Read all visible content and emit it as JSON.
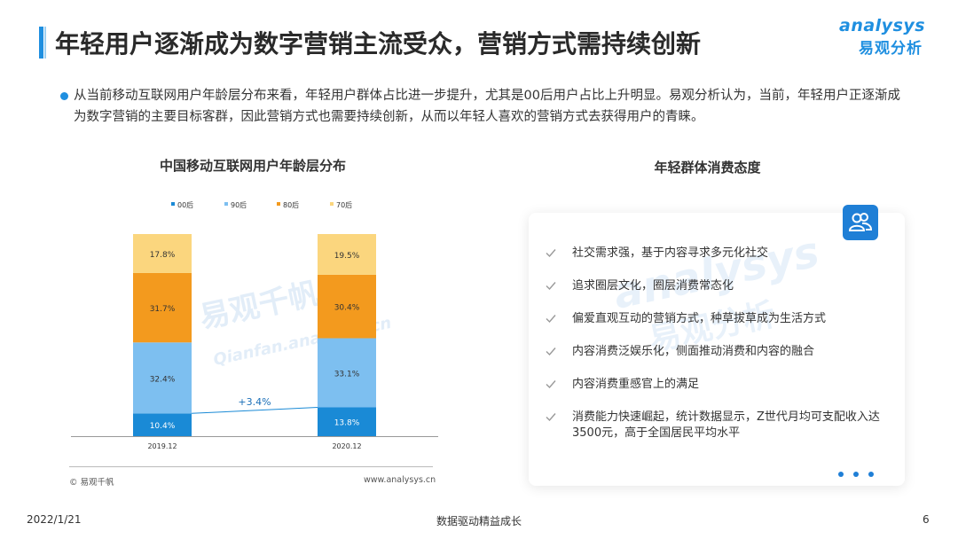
{
  "header": {
    "title": "年轻用户逐渐成为数字营销主流受众，营销方式需持续创新",
    "logo_text_en": "analysys",
    "logo_text_cn": "易观分析"
  },
  "intro": "从当前移动互联网用户年龄层分布来看，年轻用户群体占比进一步提升，尤其是00后用户占比上升明显。易观分析认为，当前，年轻用户正逐渐成为数字营销的主要目标客群，因此营销方式也需要持续创新，从而以年轻人喜欢的营销方式去获得用户的青睐。",
  "chart_data": {
    "type": "bar",
    "stacked": true,
    "percent": true,
    "title": "中国移动互联网用户年龄层分布",
    "categories": [
      "2019.12",
      "2020.12"
    ],
    "series": [
      {
        "name": "00后",
        "values": [
          10.4,
          13.8
        ],
        "color": "#1a8ad6"
      },
      {
        "name": "90后",
        "values": [
          32.4,
          33.1
        ],
        "color": "#7dbff0"
      },
      {
        "name": "80后",
        "values": [
          31.7,
          30.4
        ],
        "color": "#f39a1e"
      },
      {
        "name": "70后",
        "values": [
          17.8,
          19.5
        ],
        "color": "#fbd67e"
      }
    ],
    "value_labels": [
      [
        "10.4%",
        "32.4%",
        "31.7%",
        "17.8%"
      ],
      [
        "13.8%",
        "33.1%",
        "30.4%",
        "19.5%"
      ]
    ],
    "annotation": "+3.4%",
    "legend_position": "top",
    "ylim": [
      0,
      100
    ],
    "watermark_cn": "易观千帆",
    "watermark_en": "Qianfan.analysys.cn"
  },
  "chart_source": {
    "left": "© 易观千帆",
    "right": "www.analysys.cn"
  },
  "panel": {
    "title": "年轻群体消费态度",
    "icon": "users-icon",
    "watermark_en": "analysys",
    "watermark_cn": "易观分析",
    "items": [
      {
        "text": "社交需求强，基于内容寻求多元化社交"
      },
      {
        "text": "追求圈层文化，圈层消费常态化"
      },
      {
        "text": "偏爱直观互动的营销方式，种草拔草成为生活方式"
      },
      {
        "text": "内容消费泛娱乐化，侧面推动消费和内容的融合"
      },
      {
        "text": "内容消费重感官上的满足"
      },
      {
        "text": "消费能力快速崛起，统计数据显示，Z世代月均可支配收入达3500元，高于全国居民平均水平"
      }
    ]
  },
  "footer": {
    "date": "2022/1/21",
    "slogan": "数据驱动精益成长",
    "page": "6"
  }
}
